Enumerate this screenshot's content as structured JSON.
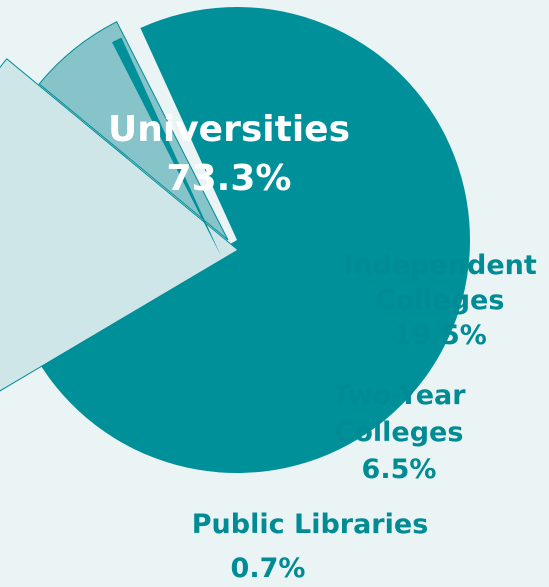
{
  "chart_data": {
    "type": "pie",
    "title": "",
    "slices": [
      {
        "name": "Universities",
        "value": 73.3,
        "value_label": "73.3%",
        "color": "#00909a",
        "label_color": "#ffffff"
      },
      {
        "name": "Independent Colleges",
        "value": 19.5,
        "value_label": "19.5%",
        "color": "#cfe6e9",
        "label_color": "#008b95"
      },
      {
        "name": "Two-Year Colleges",
        "value": 6.5,
        "value_label": "6.5%",
        "color": "#86c4ca",
        "label_color": "#008b95"
      },
      {
        "name": "Public Libraries",
        "value": 0.7,
        "value_label": "0.7%",
        "color": "#00909a",
        "label_color": "#008b95"
      }
    ]
  }
}
